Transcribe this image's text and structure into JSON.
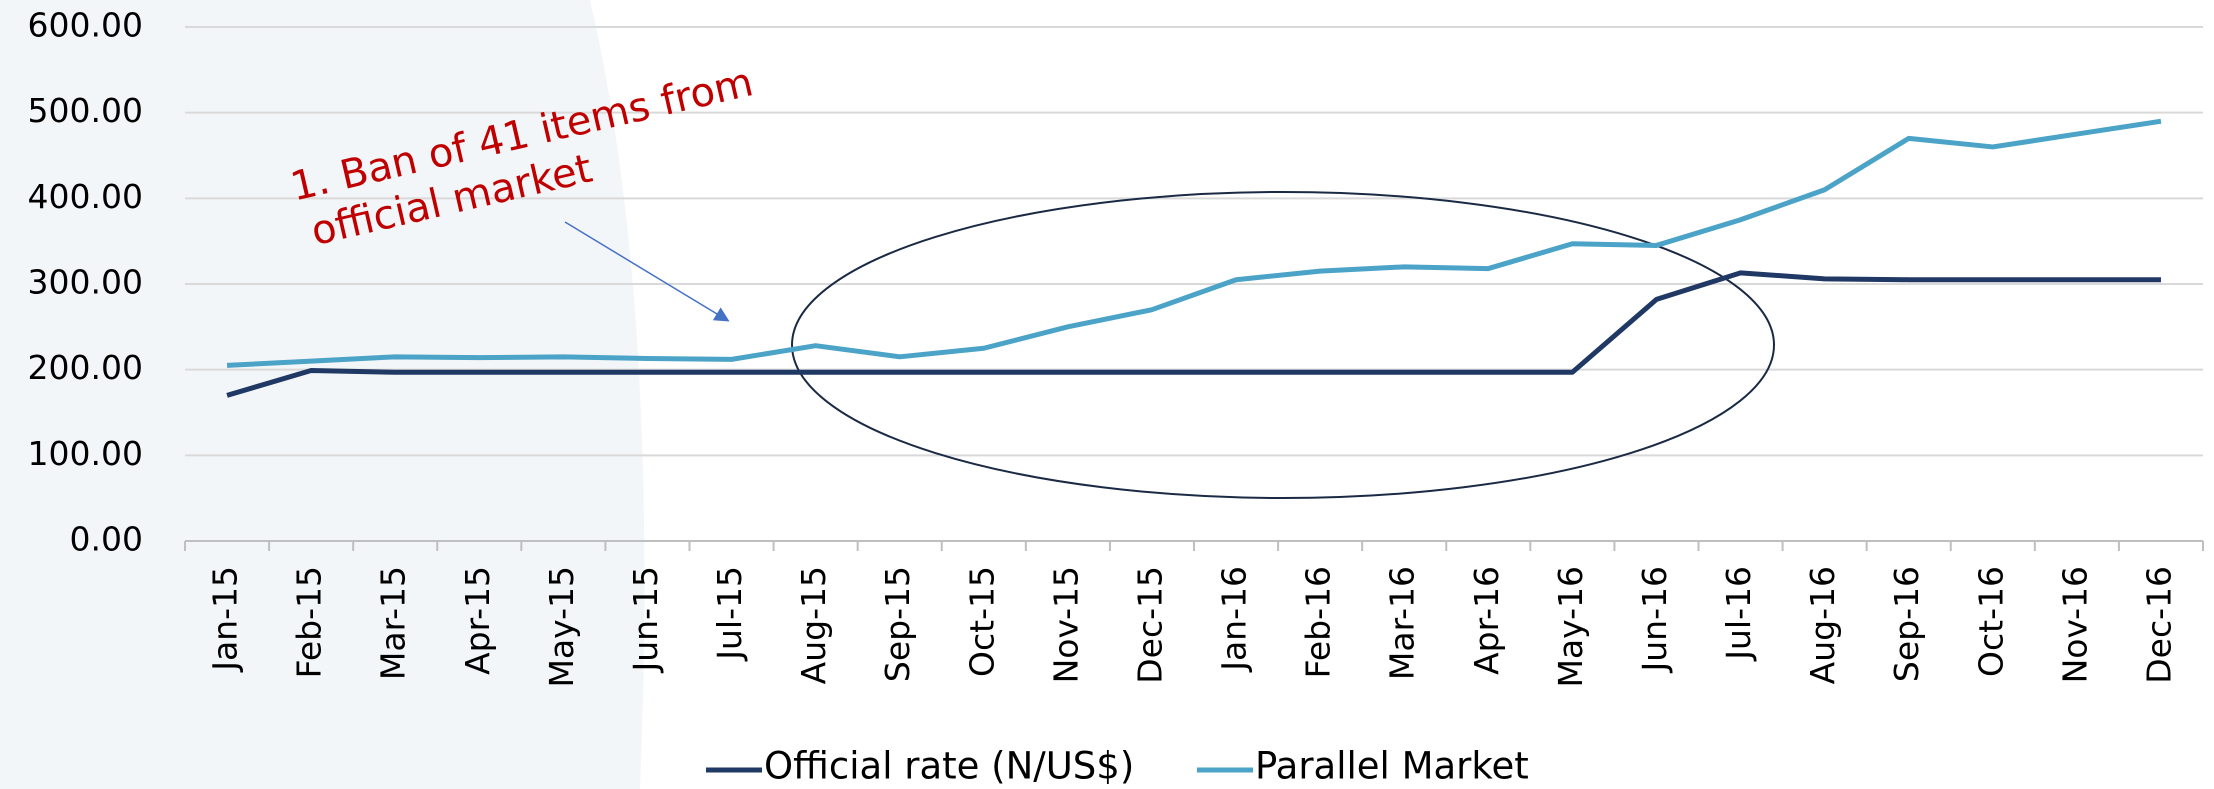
{
  "chart_data": {
    "type": "line",
    "categories": [
      "Jan-15",
      "Feb-15",
      "Mar-15",
      "Apr-15",
      "May-15",
      "Jun-15",
      "Jul-15",
      "Aug-15",
      "Sep-15",
      "Oct-15",
      "Nov-15",
      "Dec-15",
      "Jan-16",
      "Feb-16",
      "Mar-16",
      "Apr-16",
      "May-16",
      "Jun-16",
      "Jul-16",
      "Aug-16",
      "Sep-16",
      "Oct-16",
      "Nov-16",
      "Dec-16"
    ],
    "series": [
      {
        "name": "Official rate (N/US$)",
        "color": "#203864",
        "values": [
          170,
          199,
          197,
          197,
          197,
          197,
          197,
          197,
          197,
          197,
          197,
          197,
          197,
          197,
          197,
          197,
          197,
          282,
          313,
          306,
          305,
          305,
          305,
          305
        ]
      },
      {
        "name": "Parallel Market",
        "color": "#4ba3c7",
        "values": [
          205,
          210,
          215,
          214,
          215,
          213,
          212,
          228,
          215,
          225,
          250,
          270,
          305,
          315,
          320,
          318,
          347,
          345,
          375,
          410,
          470,
          460,
          475,
          490
        ]
      }
    ],
    "ylim": [
      0,
      600
    ],
    "yticks": [
      {
        "value": 0,
        "label": "0.00"
      },
      {
        "value": 100,
        "label": "100.00"
      },
      {
        "value": 200,
        "label": "200.00"
      },
      {
        "value": 300,
        "label": "300.00"
      },
      {
        "value": 400,
        "label": "400.00"
      },
      {
        "value": 500,
        "label": "500.00"
      },
      {
        "value": 600,
        "label": "600.00"
      }
    ],
    "grid": true,
    "legend": "bottom",
    "annotation": [
      "1. Ban of 41 items from",
      "official market"
    ]
  }
}
